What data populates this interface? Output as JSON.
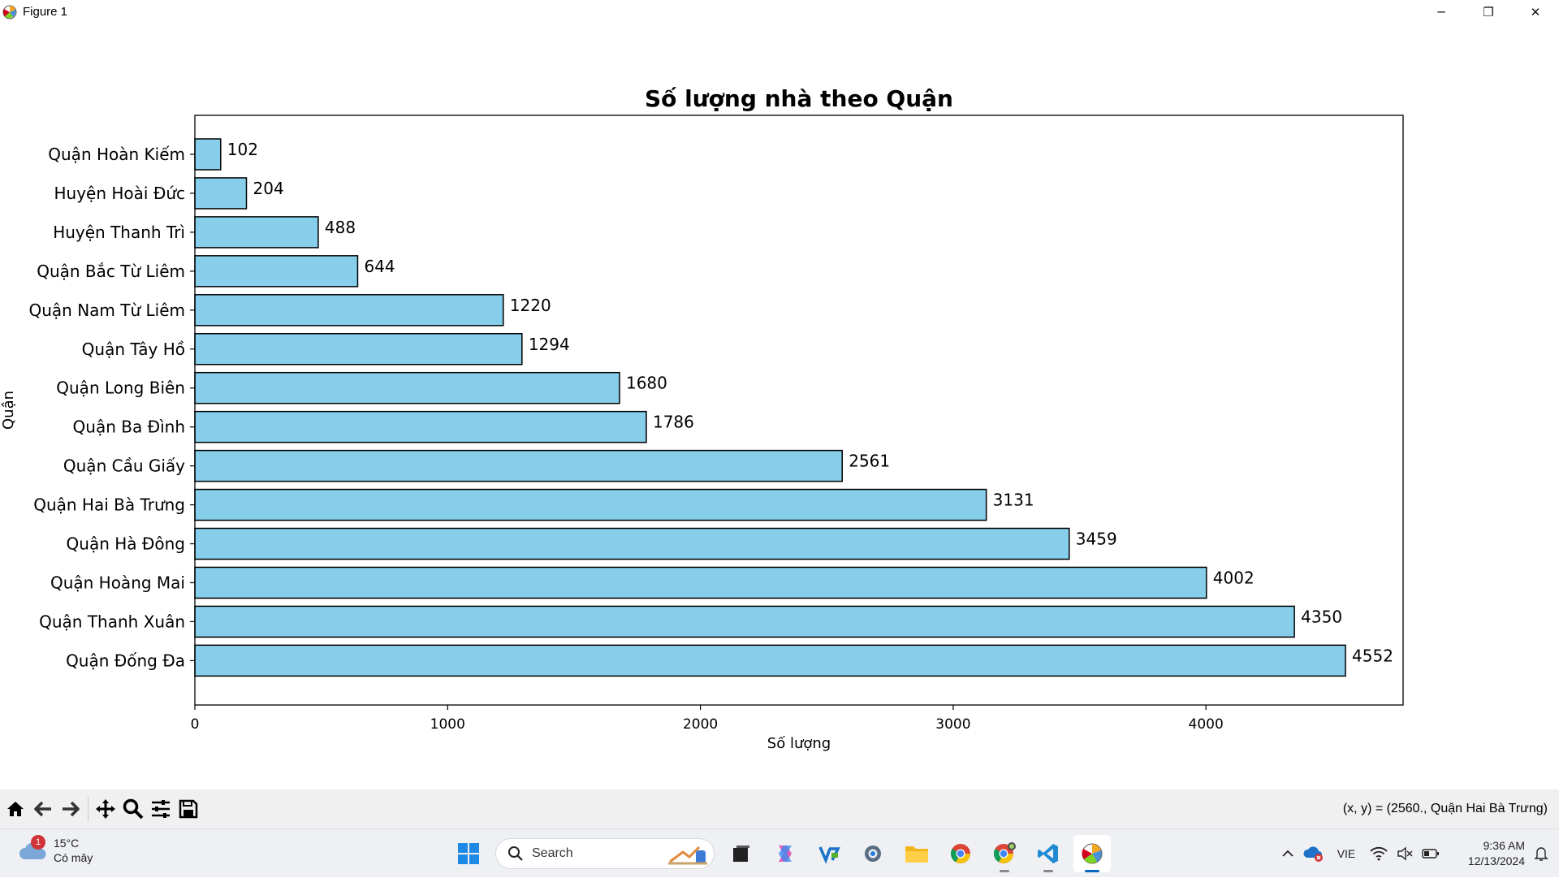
{
  "window": {
    "title": "Figure 1",
    "minimize": "─",
    "maximize": "❐",
    "close": "✕"
  },
  "chart_data": {
    "type": "bar",
    "orientation": "horizontal",
    "title": "Số lượng nhà theo Quận",
    "xlabel": "Số lượng",
    "ylabel": "Quận",
    "categories": [
      "Quận Hoàn Kiếm",
      "Huyện Hoài Đức",
      "Huyện Thanh Trì",
      "Quận Bắc Từ Liêm",
      "Quận Nam Từ Liêm",
      "Quận Tây Hồ",
      "Quận Long Biên",
      "Quận Ba Đình",
      "Quận Cầu Giấy",
      "Quận Hai Bà Trưng",
      "Quận Hà Đông",
      "Quận Hoàng Mai",
      "Quận Thanh Xuân",
      "Quận Đống Đa"
    ],
    "values": [
      102,
      204,
      488,
      644,
      1220,
      1294,
      1680,
      1786,
      2561,
      3131,
      3459,
      4002,
      4350,
      4552
    ],
    "xlim": [
      0,
      4780
    ],
    "xticks": [
      0,
      1000,
      2000,
      3000,
      4000
    ],
    "bar_color": "#87ceeb",
    "edge_color": "#000000",
    "grid": false,
    "data_labels": true
  },
  "toolbar": {
    "coords": "(x, y) = (2560., Quận Hai Bà Trưng)",
    "tools": [
      "home-icon",
      "back-icon",
      "forward-icon",
      "pan-icon",
      "zoom-icon",
      "configure-icon",
      "save-icon"
    ]
  },
  "taskbar": {
    "weather": {
      "temp": "15°C",
      "desc": "Có mây",
      "badge": "1"
    },
    "search_label": "Search",
    "lang": "VIE",
    "time": "9:36 AM",
    "date": "12/13/2024"
  }
}
